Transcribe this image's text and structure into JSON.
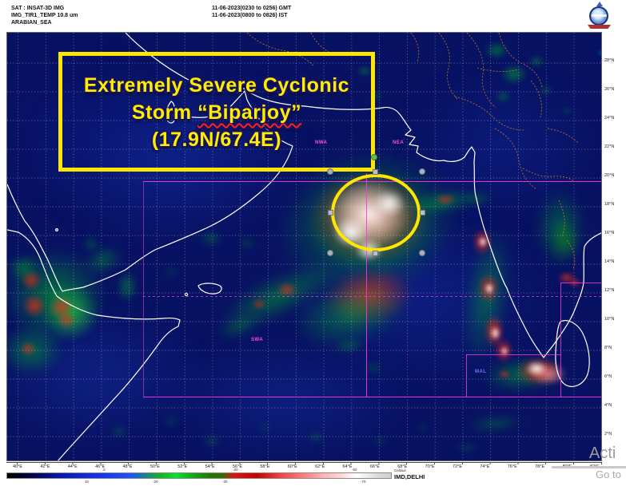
{
  "header": {
    "sat_line": "SAT : INSAT-3D IMG",
    "channel_line": "IMG_TIR1_TEMP 10.8 um",
    "region_line": "ARABIAN_SEA",
    "time_gmt": "11-06-2023(0230 to 0256) GMT",
    "time_ist": "11-06-2023(0800 to 0826) IST",
    "logo_icon": "imd-emblem"
  },
  "annotation_box": {
    "line1": "Extremely Severe Cyclonic",
    "line2_prefix": "Storm ",
    "line2_name": "“Biparjoy”",
    "line3": "(17.9N/67.4E)",
    "border_color": "#ffe600",
    "text_color": "#ffec00"
  },
  "storm_marker": {
    "shape": "ellipse",
    "color": "#ffe600"
  },
  "map": {
    "lat_labels": [
      "28°N",
      "26°N",
      "24°N",
      "22°N",
      "20°N",
      "18°N",
      "16°N",
      "14°N",
      "12°N",
      "10°N",
      "8°N",
      "6°N",
      "4°N",
      "2°N"
    ],
    "lon_labels": [
      "40°E",
      "42°E",
      "44°E",
      "46°E",
      "48°E",
      "50°E",
      "52°E",
      "54°E",
      "56°E",
      "58°E",
      "60°E",
      "62°E",
      "64°E",
      "66°E",
      "68°E",
      "70°E",
      "72°E",
      "74°E",
      "76°E",
      "78°E",
      "80°E",
      "82°E"
    ],
    "sector_labels": {
      "nwa": "NWA",
      "nea": "NEA",
      "swa": "SWA",
      "mal": "MAL"
    },
    "grid_color": "#ffffff",
    "sector_line_color": "#ff35e0"
  },
  "colorbar": {
    "unit": "Celsius",
    "source": "IMD,DELHI",
    "ticks_top": [
      "0",
      "-20",
      "-50"
    ],
    "ticks_bottom": [
      "10",
      "-20",
      "-30",
      "-70"
    ]
  },
  "watermark": {
    "line1": "Acti",
    "line2": "Go to"
  }
}
